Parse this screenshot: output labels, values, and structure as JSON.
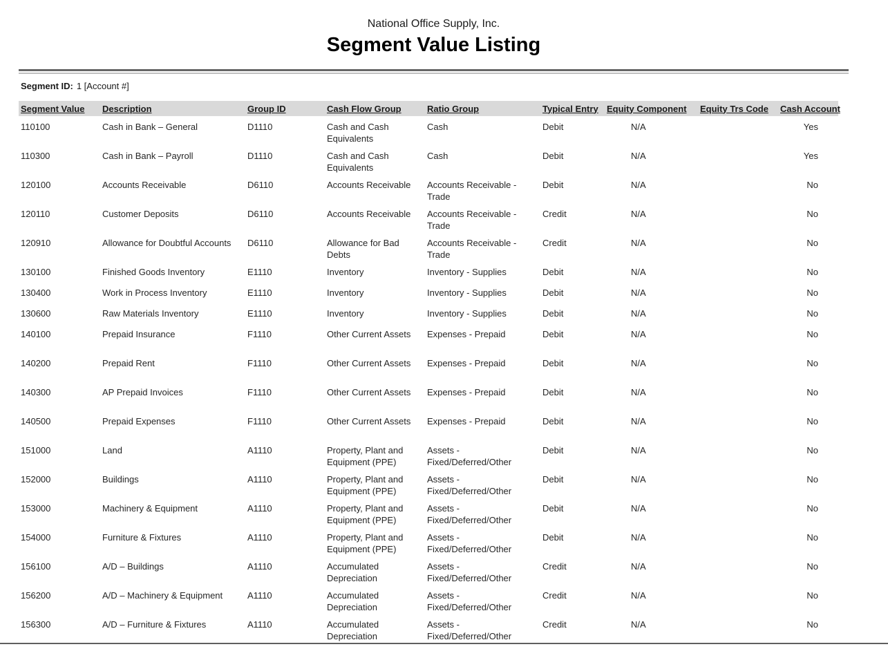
{
  "report": {
    "company_name": "National Office Supply, Inc.",
    "title": "Segment Value Listing",
    "segment_id_label": "Segment ID:",
    "segment_id_value": "1 [Account #]"
  },
  "table": {
    "columns": [
      {
        "key": "segment_value",
        "label": "Segment Value"
      },
      {
        "key": "description",
        "label": "Description"
      },
      {
        "key": "group_id",
        "label": "Group ID"
      },
      {
        "key": "cash_flow_group",
        "label": "Cash Flow Group"
      },
      {
        "key": "ratio_group",
        "label": "Ratio Group"
      },
      {
        "key": "typical_entry",
        "label": "Typical Entry"
      },
      {
        "key": "equity_component",
        "label": "Equity Component"
      },
      {
        "key": "equity_trs_code",
        "label": "Equity Trs Code"
      },
      {
        "key": "cash_account",
        "label": "Cash Account"
      }
    ],
    "rows": [
      [
        "110100",
        "Cash in Bank – General",
        "D1110",
        "Cash and Cash Equivalents",
        "Cash",
        "Debit",
        "N/A",
        "",
        "Yes"
      ],
      [
        "110300",
        "Cash in Bank – Payroll",
        "D1110",
        "Cash and Cash Equivalents",
        "Cash",
        "Debit",
        "N/A",
        "",
        "Yes"
      ],
      [
        "120100",
        "Accounts Receivable",
        "D6110",
        "Accounts Receivable",
        "Accounts Receivable - Trade",
        "Debit",
        "N/A",
        "",
        "No"
      ],
      [
        "120110",
        "Customer Deposits",
        "D6110",
        "Accounts Receivable",
        "Accounts Receivable - Trade",
        "Credit",
        "N/A",
        "",
        "No"
      ],
      [
        "120910",
        "Allowance for Doubtful Accounts",
        "D6110",
        "Allowance for Bad Debts",
        "Accounts Receivable - Trade",
        "Credit",
        "N/A",
        "",
        "No"
      ],
      [
        "130100",
        "Finished Goods Inventory",
        "E1110",
        "Inventory",
        "Inventory - Supplies",
        "Debit",
        "N/A",
        "",
        "No"
      ],
      [
        "130400",
        "Work in Process Inventory",
        "E1110",
        "Inventory",
        "Inventory - Supplies",
        "Debit",
        "N/A",
        "",
        "No"
      ],
      [
        "130600",
        "Raw Materials Inventory",
        "E1110",
        "Inventory",
        "Inventory - Supplies",
        "Debit",
        "N/A",
        "",
        "No"
      ],
      [
        "140100",
        "Prepaid Insurance",
        "F1110",
        "Other Current Assets",
        "Expenses - Prepaid",
        "Debit",
        "N/A",
        "",
        "No"
      ],
      [
        "140200",
        "Prepaid Rent",
        "F1110",
        "Other Current Assets",
        "Expenses - Prepaid",
        "Debit",
        "N/A",
        "",
        "No"
      ],
      [
        "140300",
        "AP Prepaid Invoices",
        "F1110",
        "Other Current Assets",
        "Expenses - Prepaid",
        "Debit",
        "N/A",
        "",
        "No"
      ],
      [
        "140500",
        "Prepaid Expenses",
        "F1110",
        "Other Current Assets",
        "Expenses - Prepaid",
        "Debit",
        "N/A",
        "",
        "No"
      ],
      [
        "151000",
        "Land",
        "A1110",
        "Property, Plant and Equipment (PPE)",
        "Assets - Fixed/Deferred/Other",
        "Debit",
        "N/A",
        "",
        "No"
      ],
      [
        "152000",
        "Buildings",
        "A1110",
        "Property, Plant and Equipment (PPE)",
        "Assets - Fixed/Deferred/Other",
        "Debit",
        "N/A",
        "",
        "No"
      ],
      [
        "153000",
        "Machinery & Equipment",
        "A1110",
        "Property, Plant and Equipment (PPE)",
        "Assets - Fixed/Deferred/Other",
        "Debit",
        "N/A",
        "",
        "No"
      ],
      [
        "154000",
        "Furniture & Fixtures",
        "A1110",
        "Property, Plant and Equipment (PPE)",
        "Assets - Fixed/Deferred/Other",
        "Debit",
        "N/A",
        "",
        "No"
      ],
      [
        "156100",
        "A/D – Buildings",
        "A1110",
        "Accumulated Depreciation",
        "Assets - Fixed/Deferred/Other",
        "Credit",
        "N/A",
        "",
        "No"
      ],
      [
        "156200",
        "A/D – Machinery & Equipment",
        "A1110",
        "Accumulated Depreciation",
        "Assets - Fixed/Deferred/Other",
        "Credit",
        "N/A",
        "",
        "No"
      ],
      [
        "156300",
        "A/D – Furniture & Fixtures",
        "A1110",
        "Accumulated Depreciation",
        "Assets - Fixed/Deferred/Other",
        "Credit",
        "N/A",
        "",
        "No"
      ]
    ]
  }
}
